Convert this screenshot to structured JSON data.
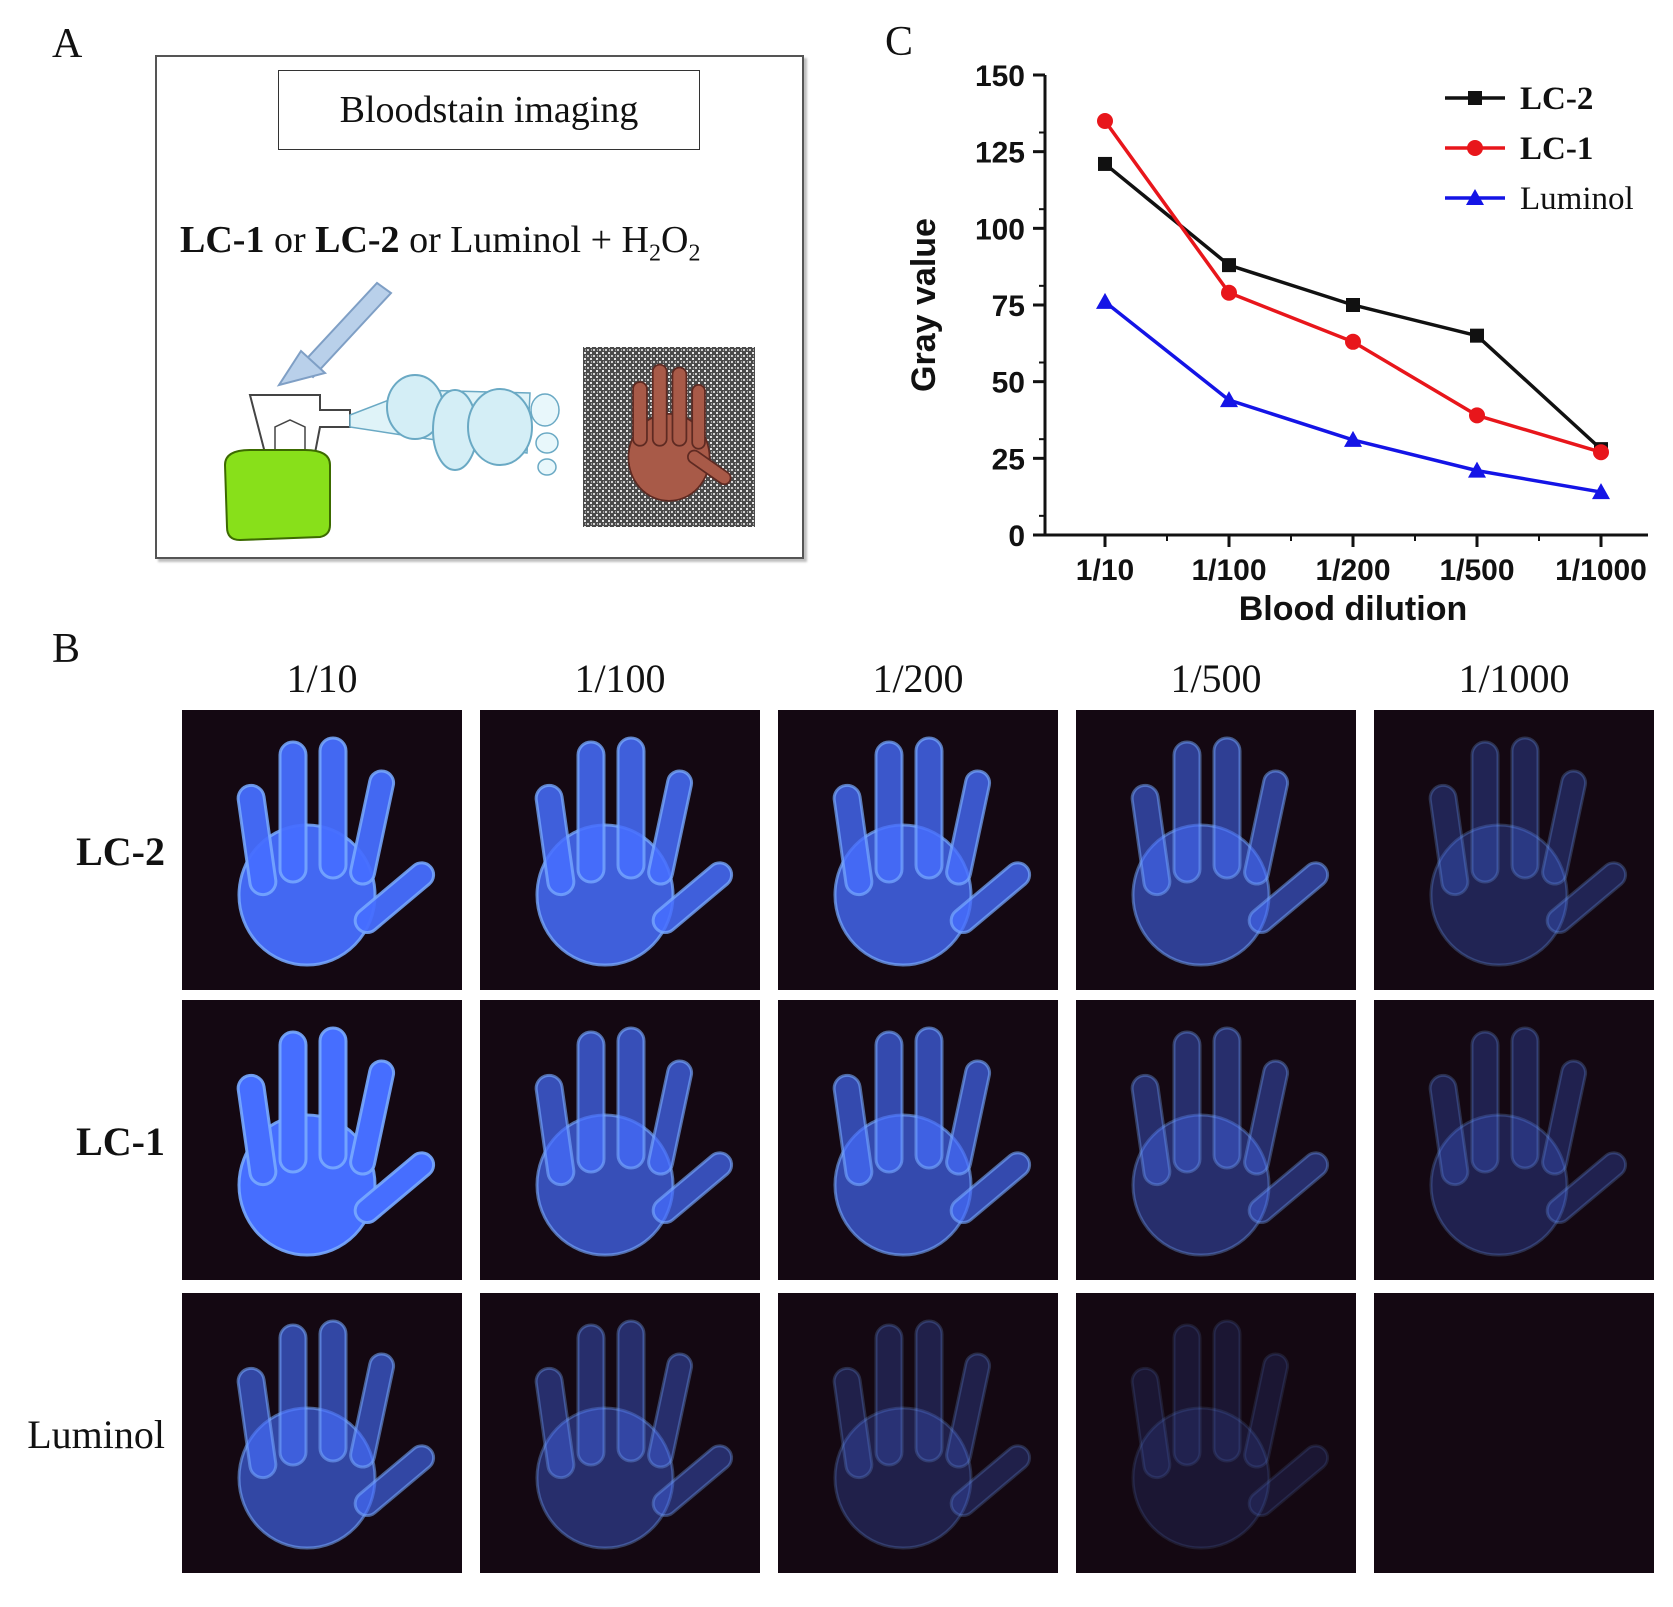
{
  "panels": {
    "a": {
      "letter": "A",
      "title": "Bloodstain imaging",
      "reagent": {
        "lc1": "LC-1",
        "or1": " or ",
        "lc2": "LC-2",
        "or2": " or Luminol + H",
        "sub1": "2",
        "o": "O",
        "sub2": "2"
      }
    },
    "b": {
      "letter": "B",
      "columns": [
        "1/10",
        "1/100",
        "1/200",
        "1/500",
        "1/1000"
      ],
      "rows": [
        {
          "label": "LC-2",
          "bold": true,
          "intensities": [
            0.95,
            0.85,
            0.78,
            0.55,
            0.28
          ]
        },
        {
          "label": "LC-1",
          "bold": true,
          "intensities": [
            1.0,
            0.7,
            0.66,
            0.38,
            0.26
          ]
        },
        {
          "label": "Luminol",
          "bold": false,
          "intensities": [
            0.62,
            0.38,
            0.24,
            0.14,
            0.0
          ]
        }
      ]
    },
    "c": {
      "letter": "C"
    }
  },
  "chart_data": {
    "type": "line",
    "categories": [
      "1/10",
      "1/100",
      "1/200",
      "1/500",
      "1/1000"
    ],
    "series": [
      {
        "name": "LC-2",
        "color": "#111111",
        "marker": "square",
        "values": [
          121,
          88,
          75,
          65,
          28
        ]
      },
      {
        "name": "LC-1",
        "color": "#e8161b",
        "marker": "circle",
        "values": [
          135,
          79,
          63,
          39,
          27
        ]
      },
      {
        "name": "Luminol",
        "color": "#1414e6",
        "marker": "triangle",
        "values": [
          76,
          44,
          31,
          21,
          14
        ]
      }
    ],
    "xlabel": "Blood dilution",
    "ylabel": "Gray value",
    "ylim": [
      0,
      150
    ],
    "yticks": [
      0,
      25,
      50,
      75,
      100,
      125,
      150
    ],
    "legend_position": "top-right",
    "grid": false
  }
}
